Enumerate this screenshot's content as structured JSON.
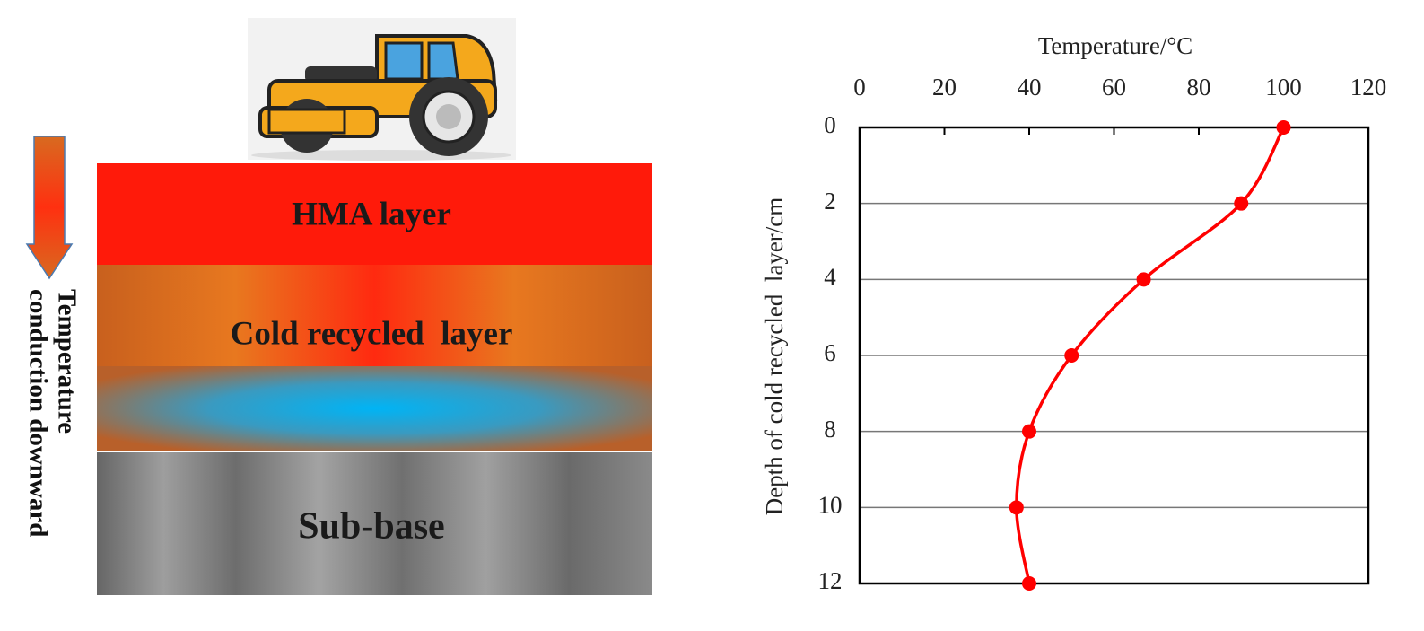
{
  "diagram": {
    "layers": [
      "HMA layer",
      "Cold recycled  layer",
      "Sub-base"
    ],
    "arrow_label": [
      "Temperature",
      "conduction downward"
    ]
  },
  "chart_data": {
    "type": "line",
    "x_label": "Temperature/°C",
    "y_label": "Depth of cold recycled  layer/cm",
    "x": [
      100,
      90,
      67,
      50,
      40,
      37,
      40
    ],
    "y": [
      0,
      2,
      4,
      6,
      8,
      10,
      12
    ],
    "color": "#ff0000",
    "xlim": [
      0,
      120
    ],
    "xticks": [
      0,
      20,
      40,
      60,
      80,
      100,
      120
    ],
    "ylim": [
      0,
      12
    ],
    "yticks": [
      0,
      2,
      4,
      6,
      8,
      10,
      12
    ],
    "y_inverted": true,
    "x_axis_position": "top",
    "grid": "y"
  }
}
